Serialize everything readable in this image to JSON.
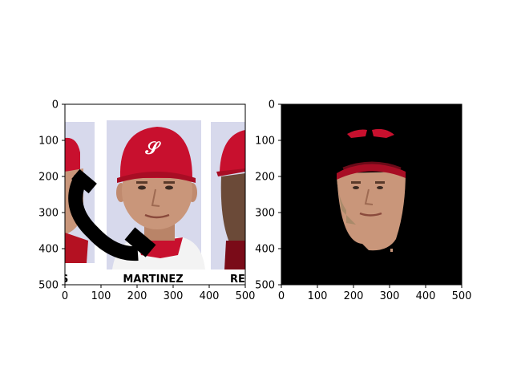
{
  "figure": {
    "panels": [
      {
        "name": "left-panel",
        "xlim": [
          0,
          500
        ],
        "ylim": [
          500,
          0
        ],
        "xticks": [
          "0",
          "100",
          "200",
          "300",
          "400",
          "500"
        ],
        "yticks": [
          "0",
          "100",
          "200",
          "300",
          "400",
          "500"
        ],
        "photo_captions": [
          "S",
          "MARTINEZ",
          "RE"
        ]
      },
      {
        "name": "right-panel",
        "xlim": [
          0,
          500
        ],
        "ylim": [
          500,
          0
        ],
        "xticks": [
          "0",
          "100",
          "200",
          "300",
          "400",
          "500"
        ],
        "yticks": [
          "0",
          "100",
          "200",
          "300",
          "400",
          "500"
        ]
      }
    ]
  },
  "colors": {
    "cap_red": "#c8102e",
    "skin": "#c9967a",
    "mask_background": "#000000",
    "card_background": "#d7d9ec"
  }
}
